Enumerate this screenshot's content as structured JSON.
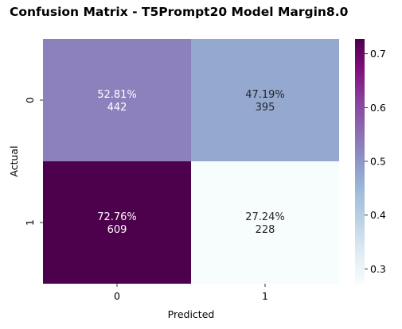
{
  "chart_data": {
    "type": "heatmap",
    "title": "Confusion Matrix - T5Prompt20 Model Margin8.0",
    "xlabel": "Predicted",
    "ylabel": "Actual",
    "x_categories": [
      "0",
      "1"
    ],
    "y_categories": [
      "0",
      "1"
    ],
    "values": [
      [
        0.5281,
        0.4719
      ],
      [
        0.7276,
        0.2724
      ]
    ],
    "cell_labels": [
      [
        "52.81%",
        "47.19%"
      ],
      [
        "72.76%",
        "27.24%"
      ]
    ],
    "counts": [
      [
        "442",
        "395"
      ],
      [
        "609",
        "228"
      ]
    ],
    "colormap": "BuPu",
    "colorbar": {
      "vmin": 0.2724,
      "vmax": 0.7276,
      "ticks": [
        "0.3",
        "0.4",
        "0.5",
        "0.6",
        "0.7"
      ]
    }
  }
}
